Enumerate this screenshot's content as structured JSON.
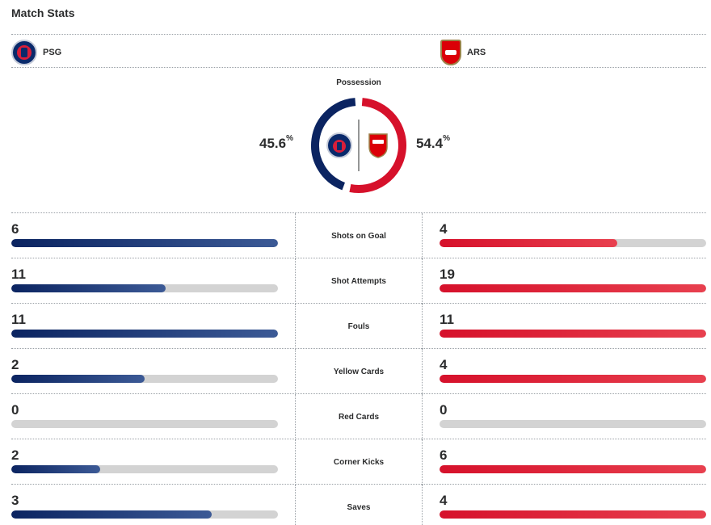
{
  "header": {
    "title": "Match Stats"
  },
  "teams": {
    "home": {
      "abbr": "PSG",
      "logo_icon": "psg-crest-icon",
      "color": "#0b2461"
    },
    "away": {
      "abbr": "ARS",
      "logo_icon": "arsenal-crest-icon",
      "color": "#d6112b"
    }
  },
  "possession": {
    "label": "Possession",
    "home": {
      "value": "45.6",
      "unit": "%"
    },
    "away": {
      "value": "54.4",
      "unit": "%"
    },
    "home_fraction": 0.456
  },
  "stats": [
    {
      "label": "Shots on Goal",
      "home": "6",
      "away": "4"
    },
    {
      "label": "Shot Attempts",
      "home": "11",
      "away": "19"
    },
    {
      "label": "Fouls",
      "home": "11",
      "away": "11"
    },
    {
      "label": "Yellow Cards",
      "home": "2",
      "away": "4"
    },
    {
      "label": "Red Cards",
      "home": "0",
      "away": "0"
    },
    {
      "label": "Corner Kicks",
      "home": "2",
      "away": "6"
    },
    {
      "label": "Saves",
      "home": "3",
      "away": "4"
    }
  ]
}
